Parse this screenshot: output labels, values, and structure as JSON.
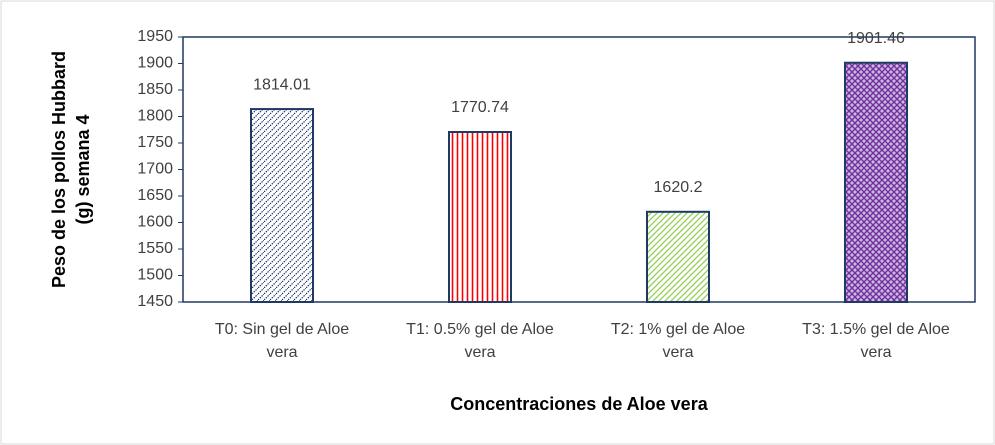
{
  "chart_data": {
    "type": "bar",
    "categories": [
      "T0: Sin gel de Aloe vera",
      "T1: 0.5% gel de Aloe vera",
      "T2: 1% gel de Aloe vera",
      "T3: 1.5% gel de Aloe vera"
    ],
    "values": [
      1814.01,
      1770.74,
      1620.2,
      1901.46
    ],
    "colors": [
      "#1f3864",
      "#ff0000",
      "#92d050",
      "#7030a0"
    ],
    "x_label": "Concentraciones de Aloe vera",
    "y_label": "Peso de los pollos  Hubbard (g) semana 4",
    "ylim": [
      1450,
      1950
    ],
    "yticks": [
      1450,
      1500,
      1550,
      1600,
      1650,
      1700,
      1750,
      1800,
      1850,
      1900,
      1950
    ]
  }
}
